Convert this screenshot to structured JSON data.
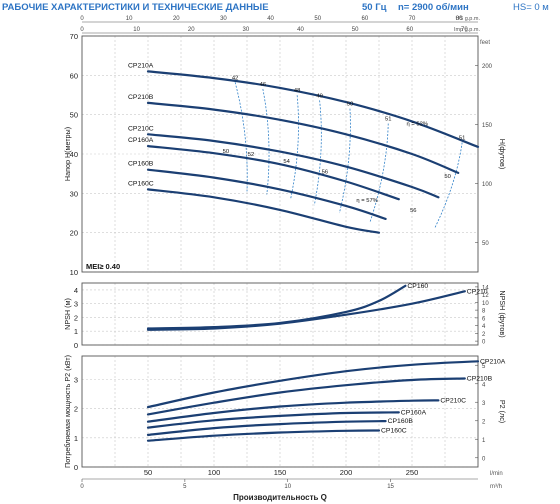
{
  "header": {
    "title": "РАБОЧИЕ ХАРАКТЕРИСТИКИ И ТЕХНИЧЕСКИЕ ДАННЫЕ",
    "freq": "50 Гц",
    "speed": "n= 2900 об/мин",
    "hs": "HS= 0 м"
  },
  "colors": {
    "curve": "#1b3f73",
    "eff": "#2f80c8",
    "grid": "#c9c9c9",
    "frame": "#555555",
    "title": "#2d74c4",
    "text": "#222222"
  },
  "chart_data": [
    {
      "id": "head",
      "type": "line",
      "ylabel": "Напор H(метры)",
      "ylabel_right": "H(футов)",
      "ylim": [
        10,
        70
      ],
      "y_ticks": [
        10,
        20,
        30,
        40,
        50,
        60,
        70
      ],
      "y_ticks_right": [
        50,
        100,
        150,
        200
      ],
      "ylabel_right_unit": "feet",
      "xlim": [
        0,
        300
      ],
      "top_axis_usgpm": {
        "unit": "US g.p.m.",
        "ticks": [
          0,
          10,
          20,
          30,
          40,
          50,
          60,
          70,
          80
        ]
      },
      "top_axis_impgpm": {
        "unit": "Imp g.p.m.",
        "ticks": [
          0,
          10,
          20,
          30,
          40,
          50,
          60,
          70
        ]
      },
      "badge": "MEI≥ 0.40",
      "series": [
        {
          "name": "CP210A",
          "x": [
            50,
            100,
            150,
            200,
            250,
            300
          ],
          "y": [
            61,
            59.3,
            56.8,
            53.2,
            48.3,
            41.8
          ]
        },
        {
          "name": "CP210B",
          "x": [
            50,
            100,
            150,
            200,
            250,
            285
          ],
          "y": [
            53,
            51.3,
            48.7,
            45.0,
            40.0,
            35.2
          ]
        },
        {
          "name": "CP210C",
          "x": [
            50,
            100,
            150,
            200,
            250,
            270
          ],
          "y": [
            45,
            43.3,
            40.6,
            36.8,
            31.6,
            29.0
          ]
        },
        {
          "name": "CP160A",
          "x": [
            50,
            100,
            150,
            200,
            240
          ],
          "y": [
            42,
            40.2,
            37.4,
            33.0,
            28.5
          ]
        },
        {
          "name": "CP160B",
          "x": [
            50,
            100,
            150,
            200,
            230
          ],
          "y": [
            36,
            34.0,
            31.0,
            26.8,
            23.5
          ]
        },
        {
          "name": "CP160C",
          "x": [
            50,
            100,
            150,
            200,
            225
          ],
          "y": [
            31,
            29.0,
            25.8,
            21.5,
            20.0
          ]
        }
      ],
      "efficiency_labels": [
        {
          "label": "42",
          "x": 116,
          "y": 59
        },
        {
          "label": "46",
          "x": 137,
          "y": 57.3
        },
        {
          "label": "48",
          "x": 163,
          "y": 55.7
        },
        {
          "label": "49",
          "x": 180,
          "y": 54.4
        },
        {
          "label": "50",
          "x": 203,
          "y": 52.3
        },
        {
          "label": "51",
          "x": 232,
          "y": 48.5
        },
        {
          "label": "η = 52%",
          "x": 254,
          "y": 47.3
        },
        {
          "label": "51",
          "x": 288,
          "y": 43.7
        },
        {
          "label": "50",
          "x": 109,
          "y": 40.3
        },
        {
          "label": "52",
          "x": 128,
          "y": 39.5
        },
        {
          "label": "54",
          "x": 155,
          "y": 37.7
        },
        {
          "label": "56",
          "x": 184,
          "y": 35.0
        },
        {
          "label": "η = 57%",
          "x": 216,
          "y": 27.8
        },
        {
          "label": "56",
          "x": 251,
          "y": 25.3
        },
        {
          "label": "50",
          "x": 277,
          "y": 33.9
        }
      ]
    },
    {
      "id": "npsh",
      "type": "line",
      "ylabel": "NPSH (м)",
      "ylabel_right": "NPSH (футов)",
      "ylim": [
        0,
        4.5
      ],
      "y_ticks": [
        0,
        1,
        2,
        3,
        4
      ],
      "y_ticks_right": [
        0,
        2,
        4,
        6,
        8,
        10,
        12,
        14
      ],
      "xlim": [
        0,
        300
      ],
      "series": [
        {
          "name": "CP160",
          "x": [
            50,
            100,
            150,
            200,
            225,
            245
          ],
          "y": [
            1.2,
            1.3,
            1.6,
            2.4,
            3.2,
            4.3
          ]
        },
        {
          "name": "CP210",
          "x": [
            50,
            100,
            150,
            200,
            250,
            290
          ],
          "y": [
            1.1,
            1.2,
            1.55,
            2.2,
            3.0,
            3.9
          ]
        }
      ]
    },
    {
      "id": "power",
      "type": "line",
      "ylabel": "Потребляемая мощность P2 (кВт)",
      "ylabel_right": "P2 (лс)",
      "ylim": [
        0,
        3.8
      ],
      "y_ticks": [
        0,
        1,
        2,
        3
      ],
      "y_ticks_right": [
        0,
        1,
        2,
        3,
        4,
        5
      ],
      "xlim": [
        0,
        300
      ],
      "xlabel": "Производительность Q",
      "x_ticks": [
        50,
        100,
        150,
        200,
        250
      ],
      "x_unit_top": "l/min",
      "x_unit_bottom": "m³/h",
      "bottom_axis_m3h": {
        "ticks": [
          0,
          5,
          10,
          15
        ]
      },
      "series": [
        {
          "name": "CP210A",
          "x": [
            50,
            100,
            150,
            200,
            250,
            300
          ],
          "y": [
            2.05,
            2.55,
            2.95,
            3.28,
            3.5,
            3.62
          ]
        },
        {
          "name": "CP210B",
          "x": [
            50,
            100,
            150,
            200,
            250,
            290
          ],
          "y": [
            1.8,
            2.2,
            2.55,
            2.8,
            2.98,
            3.03
          ]
        },
        {
          "name": "CP210C",
          "x": [
            50,
            100,
            150,
            200,
            250,
            270
          ],
          "y": [
            1.55,
            1.85,
            2.07,
            2.2,
            2.27,
            2.28
          ]
        },
        {
          "name": "CP160A",
          "x": [
            50,
            100,
            150,
            200,
            240
          ],
          "y": [
            1.35,
            1.6,
            1.75,
            1.85,
            1.87
          ]
        },
        {
          "name": "CP160B",
          "x": [
            50,
            100,
            150,
            200,
            230
          ],
          "y": [
            1.1,
            1.33,
            1.47,
            1.55,
            1.57
          ]
        },
        {
          "name": "CP160C",
          "x": [
            50,
            100,
            150,
            200,
            225
          ],
          "y": [
            0.9,
            1.07,
            1.18,
            1.24,
            1.25
          ]
        }
      ]
    }
  ]
}
